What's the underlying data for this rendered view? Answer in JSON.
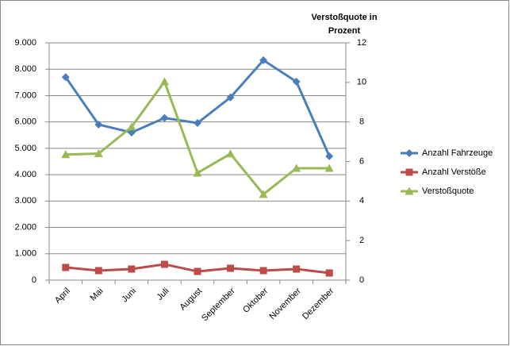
{
  "chart_data": {
    "type": "line",
    "y2_label": "Verstoßquote in Prozent",
    "categories": [
      "April",
      "Mai",
      "Juni",
      "Juli",
      "August",
      "September",
      "Oktober",
      "November",
      "Dezember"
    ],
    "series": [
      {
        "name": "Anzahl Fahrzeuge",
        "color": "#4a7ebb",
        "marker": "diamond",
        "values": [
          7700,
          5900,
          5600,
          6150,
          5960,
          6930,
          8340,
          7530,
          4700
        ]
      },
      {
        "name": "Anzahl Verstöße",
        "color": "#be4b48",
        "marker": "square",
        "values": [
          480,
          360,
          420,
          600,
          330,
          450,
          360,
          420,
          270
        ]
      },
      {
        "name": "Verstoßquote",
        "color": "#98b954",
        "marker": "triangle",
        "axis": "y2",
        "values": [
          6.35,
          6.4,
          7.75,
          10.04,
          5.42,
          6.39,
          4.34,
          5.66,
          5.66
        ]
      }
    ],
    "ylim": [
      0,
      9000
    ],
    "yticks": [
      0,
      {
        "value": 1000,
        "label": "1.000"
      },
      {
        "value": 2000,
        "label": "2.000"
      },
      {
        "value": 3000,
        "label": "3.000"
      },
      {
        "value": 4000,
        "label": "4.000"
      },
      {
        "value": 5000,
        "label": "5.000"
      },
      {
        "value": 6000,
        "label": "6.000"
      },
      {
        "value": 7000,
        "label": "7.000"
      },
      {
        "value": 8000,
        "label": "8.000"
      },
      {
        "value": 9000,
        "label": "9.000"
      }
    ],
    "y2lim": [
      0,
      12
    ],
    "y2ticks": [
      0,
      2,
      4,
      6,
      8,
      10,
      12
    ],
    "grid": true,
    "legend": "right"
  }
}
